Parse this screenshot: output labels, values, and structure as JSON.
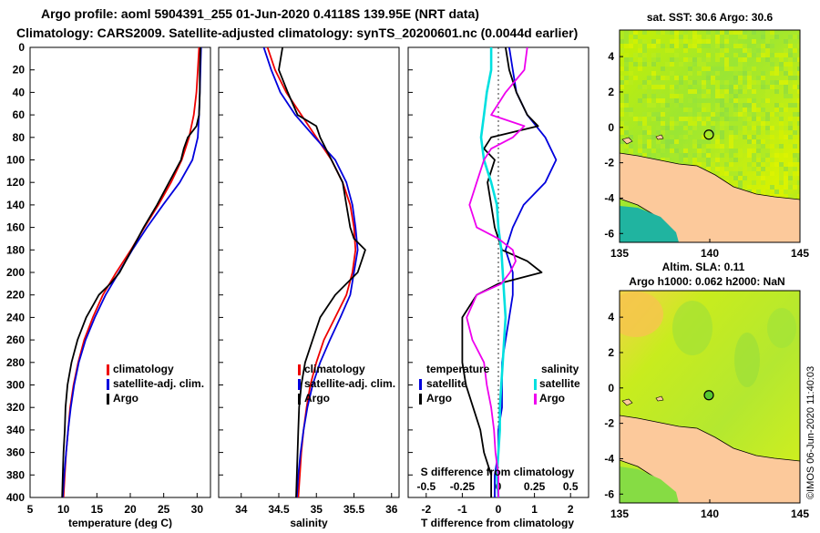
{
  "title_line1": "Argo profile: aoml 5904391_255 01-Jun-2020 0.4118S 139.95E (NRT data)",
  "title_line2": "Climatology: CARS2009. Satellite-adjusted climatology: synTS_20200601.nc (0.0044d earlier)",
  "credit": "©IMOS 06-Jun-2020 11:40:03",
  "colors": {
    "climatology": "#ee0000",
    "satellite": "#0000dd",
    "argo": "#000000",
    "sat_diff_T": "#00e0e0",
    "argo_diff_S": "#ee00ee"
  },
  "chart_data": [
    {
      "type": "line",
      "name": "temperature",
      "xlabel": "temperature (deg C)",
      "ylabel": "",
      "xlim": [
        5,
        32
      ],
      "ylim": [
        400,
        0
      ],
      "xticks": [
        5,
        10,
        15,
        20,
        25,
        30
      ],
      "xtick_labels": [
        "5",
        "10",
        "15",
        "20",
        "25",
        "30"
      ],
      "yticks": [
        0,
        20,
        40,
        60,
        80,
        100,
        120,
        140,
        160,
        180,
        200,
        220,
        240,
        260,
        280,
        300,
        320,
        340,
        360,
        380,
        400
      ],
      "legend": [
        "climatology",
        "satellite-adj. clim.",
        "Argo"
      ],
      "series": [
        {
          "name": "climatology",
          "depth": [
            0,
            20,
            40,
            60,
            80,
            100,
            120,
            140,
            160,
            180,
            200,
            220,
            240,
            260,
            280,
            300,
            320,
            340,
            360,
            380,
            400
          ],
          "values": [
            30.3,
            30.1,
            29.9,
            29.5,
            28.8,
            27.7,
            26.1,
            24.2,
            22.1,
            20.1,
            17.9,
            15.9,
            14.4,
            13.1,
            12.2,
            11.5,
            11.0,
            10.7,
            10.4,
            10.2,
            10.0
          ]
        },
        {
          "name": "satellite-adj. clim.",
          "depth": [
            0,
            20,
            40,
            60,
            80,
            100,
            120,
            140,
            160,
            180,
            200,
            220,
            240,
            260,
            280,
            300,
            320,
            340,
            360,
            380,
            400
          ],
          "values": [
            30.6,
            30.5,
            30.4,
            30.3,
            30.1,
            29.3,
            27.4,
            24.9,
            22.5,
            20.3,
            18.3,
            16.3,
            14.7,
            13.3,
            12.3,
            11.6,
            11.1,
            10.7,
            10.4,
            10.1,
            9.9
          ]
        },
        {
          "name": "Argo",
          "depth": [
            0,
            20,
            40,
            60,
            70,
            80,
            90,
            100,
            120,
            140,
            160,
            180,
            200,
            210,
            220,
            240,
            260,
            280,
            300,
            320,
            340,
            360,
            380,
            400
          ],
          "values": [
            30.5,
            30.4,
            30.4,
            30.3,
            29.9,
            28.6,
            28.0,
            27.6,
            25.8,
            24.0,
            22.0,
            20.2,
            18.4,
            17.0,
            15.3,
            13.4,
            12.1,
            11.2,
            10.6,
            10.3,
            10.2,
            10.0,
            9.9,
            9.8
          ]
        }
      ]
    },
    {
      "type": "line",
      "name": "salinity",
      "xlabel": "salinity",
      "ylabel": "",
      "xlim": [
        33.7,
        36.1
      ],
      "ylim": [
        400,
        0
      ],
      "xticks": [
        34,
        34.5,
        35,
        35.5,
        36
      ],
      "xtick_labels": [
        "34",
        "34.5",
        "35",
        "35.5",
        "36"
      ],
      "legend": [
        "climatology",
        "satellite-adj. clim.",
        "Argo"
      ],
      "series": [
        {
          "name": "climatology",
          "depth": [
            0,
            20,
            40,
            60,
            80,
            100,
            120,
            140,
            160,
            180,
            200,
            220,
            240,
            260,
            280,
            300,
            320,
            340,
            360,
            380,
            400
          ],
          "values": [
            34.35,
            34.45,
            34.6,
            34.8,
            35.0,
            35.2,
            35.35,
            35.45,
            35.5,
            35.52,
            35.48,
            35.4,
            35.25,
            35.1,
            35.0,
            34.92,
            34.87,
            34.83,
            34.8,
            34.78,
            34.76
          ]
        },
        {
          "name": "satellite-adj. clim.",
          "depth": [
            0,
            20,
            40,
            60,
            80,
            100,
            120,
            140,
            160,
            180,
            200,
            220,
            240,
            260,
            280,
            300,
            320,
            340,
            360,
            380,
            400
          ],
          "values": [
            34.3,
            34.4,
            34.52,
            34.72,
            34.98,
            35.25,
            35.4,
            35.48,
            35.52,
            35.55,
            35.5,
            35.45,
            35.32,
            35.18,
            35.05,
            34.95,
            34.88,
            34.83,
            34.79,
            34.76,
            34.74
          ]
        },
        {
          "name": "Argo",
          "depth": [
            0,
            20,
            40,
            60,
            70,
            80,
            100,
            120,
            140,
            160,
            170,
            180,
            190,
            200,
            210,
            220,
            240,
            260,
            280,
            300,
            320,
            340,
            360,
            380,
            400
          ],
          "values": [
            34.55,
            34.5,
            34.62,
            34.75,
            35.0,
            35.05,
            35.2,
            35.35,
            35.4,
            35.45,
            35.5,
            35.65,
            35.6,
            35.55,
            35.4,
            35.25,
            35.05,
            34.95,
            34.85,
            34.8,
            34.77,
            34.76,
            34.75,
            34.74,
            34.73
          ]
        }
      ]
    },
    {
      "type": "line",
      "name": "difference",
      "xlabel": "T difference from climatology",
      "xlabel_top": "S difference from climatology",
      "xlim": [
        -2.5,
        2.5
      ],
      "ylim": [
        400,
        0
      ],
      "xticks": [
        -2,
        -1,
        0,
        1,
        2
      ],
      "xtick_labels": [
        "-2",
        "-1",
        "0",
        "1",
        "2"
      ],
      "s_ticks": [
        -0.5,
        -0.25,
        0,
        0.25,
        0.5
      ],
      "s_tick_labels": [
        "-0.5",
        "-0.25",
        "0",
        "0.25",
        "0.5"
      ],
      "legend_temperature": {
        "title": "temperature",
        "items": [
          "satellite",
          "Argo"
        ]
      },
      "legend_salinity": {
        "title": "salinity",
        "items": [
          "satellite",
          "Argo"
        ]
      },
      "series": [
        {
          "name": "T satellite",
          "axis": "T",
          "depth": [
            0,
            20,
            40,
            60,
            80,
            100,
            120,
            140,
            160,
            180,
            200,
            220,
            240,
            260,
            280,
            300,
            320,
            340,
            360,
            380,
            400
          ],
          "values": [
            0.3,
            0.4,
            0.5,
            0.8,
            1.3,
            1.6,
            1.3,
            0.7,
            0.4,
            0.2,
            0.4,
            0.4,
            0.3,
            0.2,
            0.1,
            0.1,
            0.1,
            0.0,
            0.0,
            -0.1,
            -0.1
          ]
        },
        {
          "name": "T Argo",
          "axis": "T",
          "depth": [
            0,
            20,
            40,
            60,
            70,
            80,
            90,
            100,
            120,
            140,
            160,
            180,
            190,
            200,
            210,
            220,
            240,
            260,
            280,
            300,
            320,
            340,
            360,
            380,
            400
          ],
          "values": [
            0.2,
            0.3,
            0.5,
            0.8,
            1.1,
            -0.2,
            -0.4,
            -0.1,
            -0.3,
            -0.2,
            -0.1,
            0.1,
            0.8,
            1.2,
            0.0,
            -0.6,
            -1.0,
            -1.0,
            -1.0,
            -0.9,
            -0.7,
            -0.5,
            -0.4,
            -0.2,
            -0.2
          ]
        },
        {
          "name": "S satellite",
          "axis": "S",
          "depth": [
            0,
            20,
            40,
            60,
            80,
            100,
            120,
            140,
            160,
            180,
            200,
            220,
            240,
            260,
            280,
            300,
            320,
            340,
            360,
            380,
            400
          ],
          "values": [
            -0.05,
            -0.05,
            -0.08,
            -0.1,
            -0.12,
            -0.1,
            -0.05,
            -0.01,
            0.0,
            0.02,
            0.03,
            0.04,
            0.05,
            0.04,
            0.03,
            0.02,
            0.01,
            0.01,
            0.0,
            -0.01,
            0.0
          ]
        },
        {
          "name": "S Argo",
          "axis": "S",
          "depth": [
            0,
            20,
            40,
            60,
            70,
            80,
            90,
            100,
            120,
            140,
            160,
            170,
            180,
            190,
            200,
            210,
            220,
            240,
            260,
            280,
            300,
            320,
            340,
            360,
            380,
            400
          ],
          "values": [
            0.2,
            0.18,
            0.05,
            -0.05,
            0.18,
            0.1,
            -0.05,
            -0.1,
            -0.15,
            -0.2,
            -0.15,
            0.0,
            0.1,
            0.12,
            0.08,
            0.02,
            -0.15,
            -0.22,
            -0.18,
            -0.1,
            -0.08,
            -0.05,
            -0.03,
            -0.02,
            0.0,
            0.0
          ]
        }
      ]
    },
    {
      "type": "heatmap",
      "name": "sst_map",
      "title": "sat. SST: 30.6 Argo: 30.6",
      "xlim": [
        135,
        145
      ],
      "ylim": [
        -6.5,
        5.5
      ],
      "xticks": [
        135,
        140,
        145
      ],
      "xtick_labels": [
        "135",
        "140",
        "145"
      ],
      "yticks": [
        4,
        2,
        0,
        -2,
        -4,
        -6
      ],
      "ytick_labels": [
        "4",
        "2",
        "0",
        "-2",
        "-4",
        "-6"
      ],
      "marker": {
        "lon": 139.95,
        "lat": -0.41
      }
    },
    {
      "type": "heatmap",
      "name": "sla_map",
      "title": "Altim. SLA: 0.11",
      "subtitle": "Argo h1000: 0.062 h2000: NaN",
      "xlim": [
        135,
        145
      ],
      "ylim": [
        -6.5,
        5.5
      ],
      "xticks": [
        135,
        140,
        145
      ],
      "xtick_labels": [
        "135",
        "140",
        "145"
      ],
      "yticks": [
        4,
        2,
        0,
        -2,
        -4,
        -6
      ],
      "ytick_labels": [
        "4",
        "2",
        "0",
        "-2",
        "-4",
        "-6"
      ],
      "marker": {
        "lon": 139.95,
        "lat": -0.41
      }
    }
  ]
}
